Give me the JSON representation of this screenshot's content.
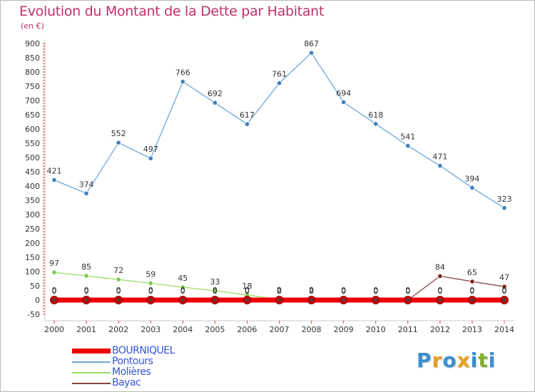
{
  "header": {
    "title": "Evolution du Montant de la Dette par Habitant",
    "subtitle": "(en €)"
  },
  "logo": {
    "letters": [
      "P",
      "r",
      "o",
      "x",
      "i",
      "t",
      "i"
    ],
    "colors": [
      "#3a8fd0",
      "#e8a020",
      "#3a8fd0",
      "#e8a020",
      "#3a8fd0",
      "#80b030",
      "#3a8fd0"
    ]
  },
  "chart_data": {
    "type": "line",
    "title": "Evolution du Montant de la Dette par Habitant",
    "ylabel": "(en €)",
    "xlabel": "",
    "x": [
      "2000",
      "2001",
      "2002",
      "2003",
      "2004",
      "2005",
      "2006",
      "2007",
      "2008",
      "2009",
      "2010",
      "2011",
      "2012",
      "2013",
      "2014"
    ],
    "ylim": [
      -50,
      900
    ],
    "yticks": [
      -50,
      0,
      50,
      100,
      150,
      200,
      250,
      300,
      350,
      400,
      450,
      500,
      550,
      600,
      650,
      700,
      750,
      800,
      850,
      900
    ],
    "grid": false,
    "legend": "bottom-left",
    "series": [
      {
        "name": "BOURNIQUEL",
        "color": "#ee0000",
        "values": [
          0,
          0,
          0,
          0,
          0,
          0,
          0,
          0,
          0,
          0,
          0,
          0,
          0,
          0,
          0
        ],
        "labels": [
          "0",
          "0",
          "0",
          "0",
          "0",
          "0",
          "0",
          "0",
          "0",
          "0",
          "0",
          "0",
          "0",
          "0",
          "0"
        ]
      },
      {
        "name": "Pontours",
        "color": "#6ea6dc",
        "marker": "#3a7fc0",
        "values": [
          421,
          374,
          552,
          497,
          766,
          692,
          617,
          761,
          867,
          694,
          618,
          541,
          471,
          394,
          323
        ],
        "labels": [
          "421",
          "374",
          "552",
          "497",
          "766",
          "692",
          "617",
          "761",
          "867",
          "694",
          "618",
          "541",
          "471",
          "394",
          "323"
        ]
      },
      {
        "name": "Molières",
        "color": "#99dd66",
        "marker": "#77cc44",
        "values": [
          97,
          85,
          72,
          59,
          45,
          33,
          18,
          2,
          2,
          0,
          0,
          0,
          0,
          0,
          0
        ],
        "labels": [
          "97",
          "85",
          "72",
          "59",
          "45",
          "33",
          "18",
          "2",
          "2",
          "0",
          "0",
          "0",
          "0",
          "0",
          "0"
        ]
      },
      {
        "name": "Bayac",
        "color": "#884444",
        "marker": "#772222",
        "values": [
          0,
          0,
          0,
          0,
          0,
          0,
          0,
          0,
          0,
          0,
          0,
          0,
          84,
          65,
          47
        ],
        "labels": [
          "0",
          "0",
          "0",
          "0",
          "0",
          "0",
          "0",
          "0",
          "0",
          "0",
          "0",
          "0",
          "84",
          "65",
          "47"
        ]
      }
    ]
  }
}
